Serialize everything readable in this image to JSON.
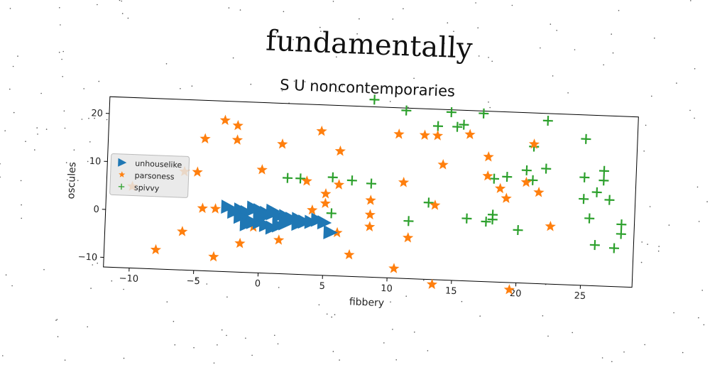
{
  "figure": {
    "suptitle": "fundamentally",
    "title": "S U noncontemporaries"
  },
  "chart_data": {
    "type": "scatter",
    "title": "S U noncontemporaries",
    "xlabel": "fibbery",
    "ylabel": "oscules",
    "xlim": [
      -12,
      29
    ],
    "ylim": [
      -12,
      23.5
    ],
    "xticks": [
      -10,
      -5,
      0,
      5,
      10,
      15,
      20,
      25
    ],
    "yticks": [
      -10,
      0,
      10,
      20
    ],
    "grid": false,
    "legend_position": "center-left",
    "series": [
      {
        "name": "unhouselike",
        "marker": "triangle-right",
        "color": "#1f77b4",
        "points": [
          [
            -2.5,
            1.5
          ],
          [
            -1.5,
            1
          ],
          [
            -1,
            0.5
          ],
          [
            -0.5,
            1.5
          ],
          [
            0,
            1
          ],
          [
            0.5,
            0.5
          ],
          [
            1,
            1
          ],
          [
            1.5,
            0
          ],
          [
            2,
            0
          ],
          [
            2.5,
            -0.5
          ],
          [
            3,
            -0.5
          ],
          [
            3.5,
            -1
          ],
          [
            4,
            -1
          ],
          [
            4.5,
            -0.5
          ],
          [
            5,
            -1
          ],
          [
            5.5,
            -3
          ],
          [
            -1,
            -1
          ],
          [
            0,
            -1.5
          ],
          [
            0.5,
            -2
          ],
          [
            1,
            -2.5
          ],
          [
            1.5,
            -2
          ],
          [
            -1.5,
            -0.5
          ],
          [
            0.5,
            0
          ],
          [
            -0.5,
            -1.5
          ],
          [
            2,
            -1.5
          ],
          [
            1,
            0.5
          ],
          [
            -2,
            0.5
          ],
          [
            3,
            -1.5
          ],
          [
            0,
            0
          ],
          [
            -1,
            -2
          ]
        ]
      },
      {
        "name": "parsoness",
        "marker": "star",
        "color": "#ff7f0e",
        "points": [
          [
            -3,
            19.5
          ],
          [
            -2,
            18.5
          ],
          [
            -2,
            15.5
          ],
          [
            -4.5,
            15.5
          ],
          [
            -5,
            8.5
          ],
          [
            -6,
            8.5
          ],
          [
            -10,
            5
          ],
          [
            -4.5,
            1
          ],
          [
            -3.5,
            1
          ],
          [
            -6,
            -4
          ],
          [
            -3.5,
            -9
          ],
          [
            -8,
            -8
          ],
          [
            -1.5,
            -6
          ],
          [
            -0.5,
            -2.5
          ],
          [
            1.5,
            -5
          ],
          [
            1.5,
            15
          ],
          [
            0,
            9.5
          ],
          [
            3.5,
            7.5
          ],
          [
            4.5,
            18
          ],
          [
            6,
            14
          ],
          [
            6,
            7
          ],
          [
            5,
            3
          ],
          [
            5,
            5
          ],
          [
            4,
            1.5
          ],
          [
            6,
            -3
          ],
          [
            7,
            -7.5
          ],
          [
            8.5,
            4
          ],
          [
            8.5,
            1
          ],
          [
            8.5,
            -1.5
          ],
          [
            10.5,
            18
          ],
          [
            11,
            8
          ],
          [
            11.5,
            -3.5
          ],
          [
            10.5,
            -10
          ],
          [
            12.5,
            18
          ],
          [
            13.5,
            18
          ],
          [
            14,
            12
          ],
          [
            13.5,
            3.5
          ],
          [
            13.5,
            -13
          ],
          [
            16,
            18.5
          ],
          [
            17.5,
            14
          ],
          [
            17.5,
            10
          ],
          [
            18.5,
            7.5
          ],
          [
            19,
            5.5
          ],
          [
            20.5,
            9
          ],
          [
            21,
            17
          ],
          [
            21.5,
            7
          ],
          [
            22.5,
            0
          ],
          [
            19.5,
            -13.5
          ]
        ]
      },
      {
        "name": "spivvy",
        "marker": "plus",
        "color": "#2ca02c",
        "points": [
          [
            8.5,
            25
          ],
          [
            11,
            23
          ],
          [
            13.5,
            20
          ],
          [
            14.5,
            23
          ],
          [
            15,
            20
          ],
          [
            15.5,
            20.5
          ],
          [
            17,
            23
          ],
          [
            22,
            22
          ],
          [
            25,
            18.5
          ],
          [
            21,
            16.5
          ],
          [
            20.5,
            11.5
          ],
          [
            21,
            9.5
          ],
          [
            22,
            12
          ],
          [
            18,
            9.5
          ],
          [
            19,
            10
          ],
          [
            25,
            10.5
          ],
          [
            26.5,
            12
          ],
          [
            26.5,
            10
          ],
          [
            26,
            7.5
          ],
          [
            25,
            6
          ],
          [
            27,
            6
          ],
          [
            25.5,
            2
          ],
          [
            28,
            1
          ],
          [
            28,
            -1
          ],
          [
            26,
            -3.5
          ],
          [
            27.5,
            -4
          ],
          [
            20,
            -1
          ],
          [
            18,
            2
          ],
          [
            18,
            1
          ],
          [
            17.5,
            0.5
          ],
          [
            16,
            1
          ],
          [
            13,
            4
          ],
          [
            11.5,
            0
          ],
          [
            8.5,
            7.5
          ],
          [
            7,
            8
          ],
          [
            5.5,
            8.5
          ],
          [
            3,
            8
          ],
          [
            2,
            8
          ],
          [
            5.5,
            1
          ]
        ]
      }
    ]
  }
}
